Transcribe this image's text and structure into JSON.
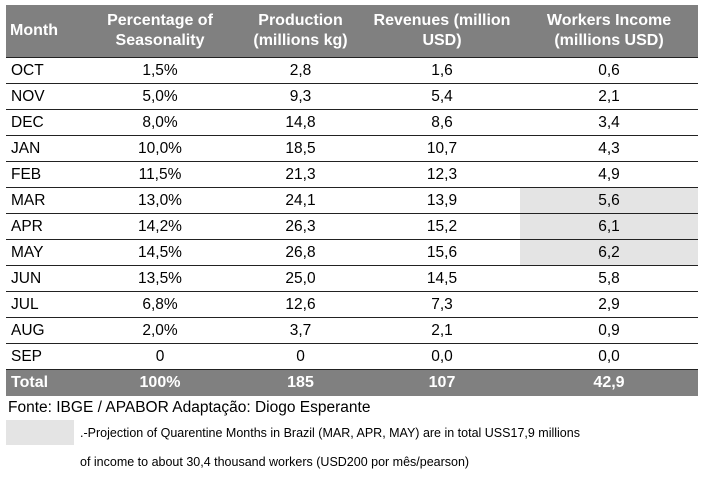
{
  "table": {
    "headers": {
      "month": "Month",
      "seasonality": [
        "Percentage of",
        "Seasonality"
      ],
      "production": [
        "Production",
        "(millions kg)"
      ],
      "revenues": [
        "Revenues (million",
        "USD)"
      ],
      "income": [
        "Workers Income",
        "(millions USD)"
      ]
    },
    "rows": [
      {
        "month": "OCT",
        "seasonality": "1,5%",
        "production": "2,8",
        "revenues": "1,6",
        "income": "0,6",
        "highlight": false
      },
      {
        "month": "NOV",
        "seasonality": "5,0%",
        "production": "9,3",
        "revenues": "5,4",
        "income": "2,1",
        "highlight": false
      },
      {
        "month": "DEC",
        "seasonality": "8,0%",
        "production": "14,8",
        "revenues": "8,6",
        "income": "3,4",
        "highlight": false
      },
      {
        "month": "JAN",
        "seasonality": "10,0%",
        "production": "18,5",
        "revenues": "10,7",
        "income": "4,3",
        "highlight": false
      },
      {
        "month": "FEB",
        "seasonality": "11,5%",
        "production": "21,3",
        "revenues": "12,3",
        "income": "4,9",
        "highlight": false
      },
      {
        "month": "MAR",
        "seasonality": "13,0%",
        "production": "24,1",
        "revenues": "13,9",
        "income": "5,6",
        "highlight": true
      },
      {
        "month": "APR",
        "seasonality": "14,2%",
        "production": "26,3",
        "revenues": "15,2",
        "income": "6,1",
        "highlight": true
      },
      {
        "month": "MAY",
        "seasonality": "14,5%",
        "production": "26,8",
        "revenues": "15,6",
        "income": "6,2",
        "highlight": true
      },
      {
        "month": "JUN",
        "seasonality": "13,5%",
        "production": "25,0",
        "revenues": "14,5",
        "income": "5,8",
        "highlight": false
      },
      {
        "month": "JUL",
        "seasonality": "6,8%",
        "production": "12,6",
        "revenues": "7,3",
        "income": "2,9",
        "highlight": false
      },
      {
        "month": "AUG",
        "seasonality": "2,0%",
        "production": "3,7",
        "revenues": "2,1",
        "income": "0,9",
        "highlight": false
      },
      {
        "month": "SEP",
        "seasonality": "0",
        "production": "0",
        "revenues": "0,0",
        "income": "0,0",
        "highlight": false
      }
    ],
    "total": {
      "month": "Total",
      "seasonality": "100%",
      "production": "185",
      "revenues": "107",
      "income": "42,9"
    }
  },
  "source": "Fonte: IBGE / APABOR Adaptação: Diogo Esperante",
  "note": {
    "line1": ".-Projection of Quarentine Months in Brazil (MAR, APR, MAY) are in total USS17,9 millions",
    "line2": "of income to about 30,4 thousand workers (USD200 por mês/pearson)"
  },
  "colors": {
    "header_bg": "#808080",
    "highlight": "#e4e4e4"
  }
}
